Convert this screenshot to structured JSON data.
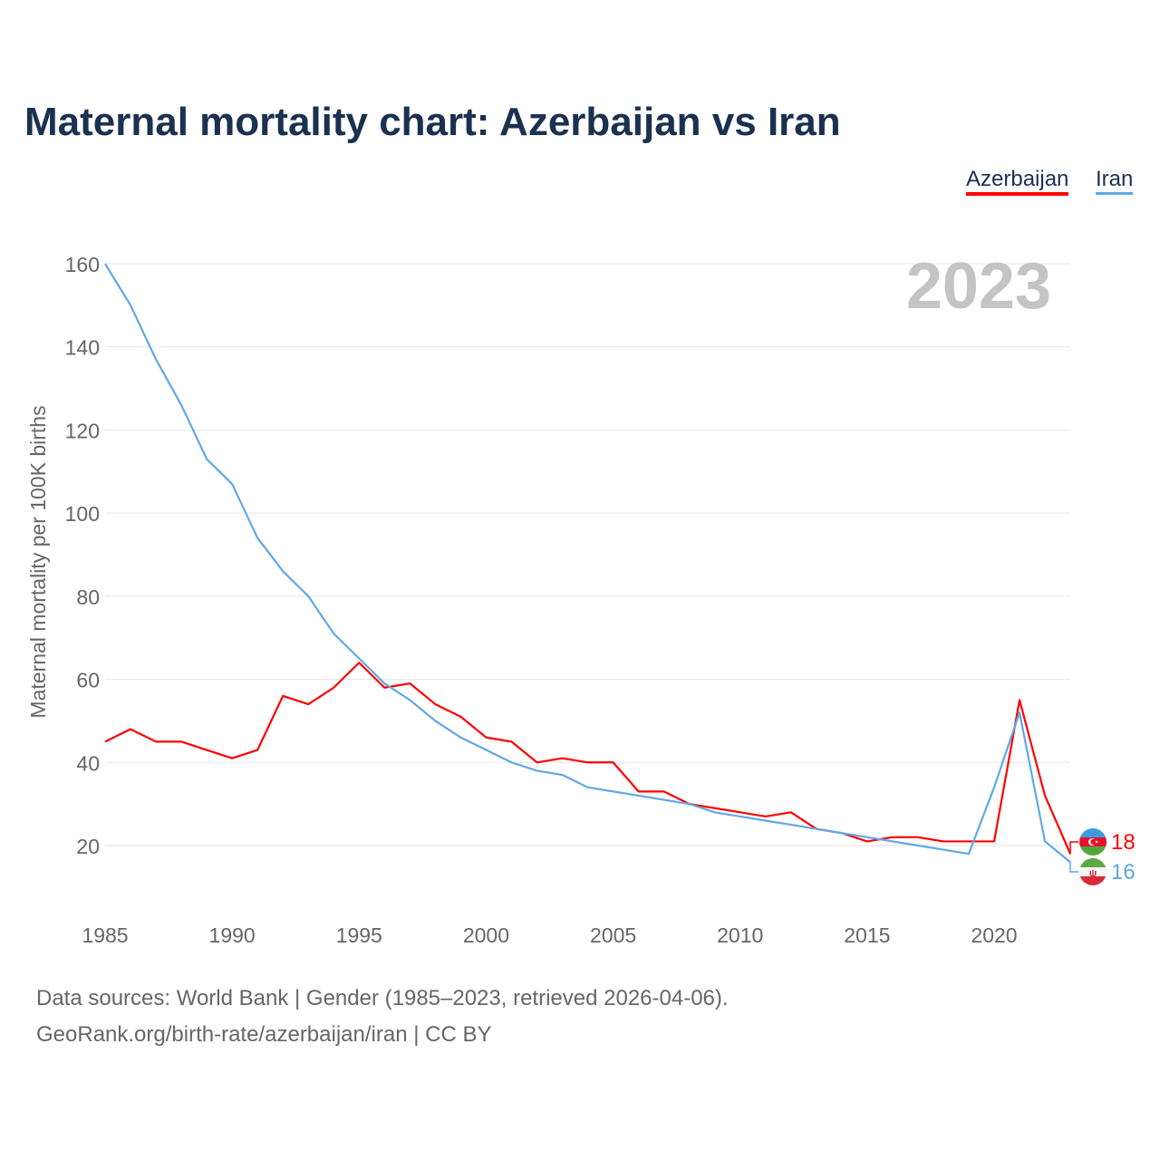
{
  "chart_data": {
    "type": "line",
    "title": "Maternal mortality chart: Azerbaijan vs Iran",
    "ylabel": "Maternal mortality per 100K births",
    "xlabel": "",
    "year_label": "2023",
    "ylim": [
      0,
      165
    ],
    "xlim": [
      1985,
      2023
    ],
    "yticks": [
      20,
      40,
      60,
      80,
      100,
      120,
      140,
      160
    ],
    "xticks": [
      1985,
      1990,
      1995,
      2000,
      2005,
      2010,
      2015,
      2020
    ],
    "grid": true,
    "legend_position": "top-right",
    "x": [
      1985,
      1986,
      1987,
      1988,
      1989,
      1990,
      1991,
      1992,
      1993,
      1994,
      1995,
      1996,
      1997,
      1998,
      1999,
      2000,
      2001,
      2002,
      2003,
      2004,
      2005,
      2006,
      2007,
      2008,
      2009,
      2010,
      2011,
      2012,
      2013,
      2014,
      2015,
      2016,
      2017,
      2018,
      2019,
      2020,
      2021,
      2022,
      2023
    ],
    "series": [
      {
        "name": "Azerbaijan",
        "color": "#ff0000",
        "end_label": "18",
        "values": [
          45,
          48,
          45,
          45,
          43,
          41,
          43,
          56,
          54,
          58,
          64,
          58,
          59,
          54,
          51,
          46,
          45,
          40,
          41,
          40,
          40,
          33,
          33,
          30,
          29,
          28,
          27,
          28,
          24,
          23,
          21,
          22,
          22,
          21,
          21,
          21,
          55,
          32,
          18
        ]
      },
      {
        "name": "Iran",
        "color": "#5fa8e8",
        "end_label": "16",
        "values": [
          160,
          150,
          137,
          126,
          113,
          107,
          94,
          86,
          80,
          71,
          65,
          59,
          55,
          50,
          46,
          43,
          40,
          38,
          37,
          34,
          33,
          32,
          31,
          30,
          28,
          27,
          26,
          25,
          24,
          23,
          22,
          21,
          20,
          19,
          18,
          34,
          52,
          21,
          16
        ]
      }
    ]
  },
  "footer": {
    "line1": "Data sources: World Bank | Gender (1985–2023, retrieved 2026-04-06).",
    "line2": "GeoRank.org/birth-rate/azerbaijan/iran | CC BY"
  }
}
